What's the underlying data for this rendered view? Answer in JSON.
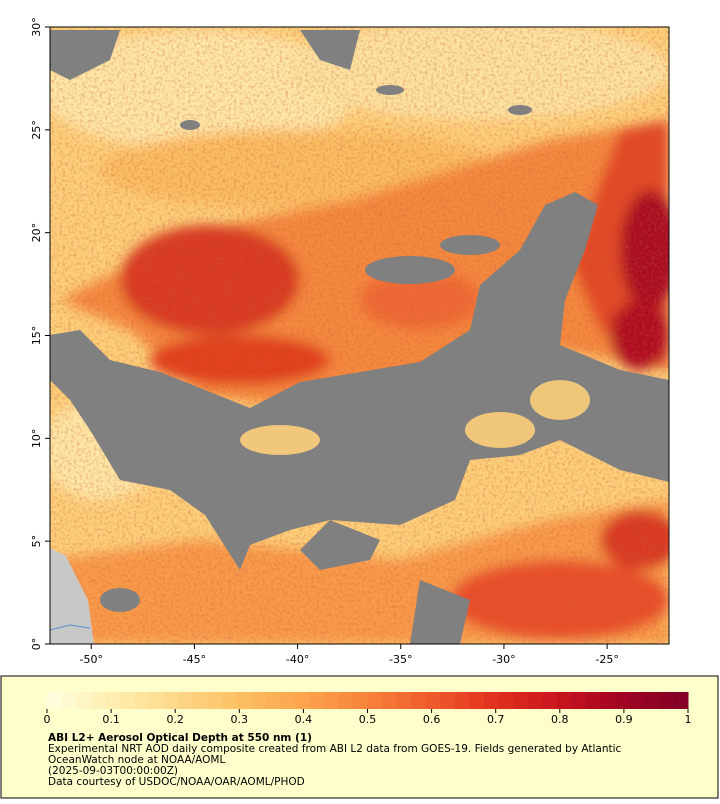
{
  "map": {
    "xlim": [
      -52,
      -22
    ],
    "ylim": [
      0,
      30
    ],
    "xticks": [
      {
        "value": -50,
        "label": "-50°"
      },
      {
        "value": -45,
        "label": "-45°"
      },
      {
        "value": -40,
        "label": "-40°"
      },
      {
        "value": -35,
        "label": "-35°"
      },
      {
        "value": -30,
        "label": "-30°"
      },
      {
        "value": -25,
        "label": "-25°"
      }
    ],
    "yticks": [
      {
        "value": 0,
        "label": "0°"
      },
      {
        "value": 5,
        "label": "5°"
      },
      {
        "value": 10,
        "label": "10°"
      },
      {
        "value": 15,
        "label": "15°"
      },
      {
        "value": 20,
        "label": "20°"
      },
      {
        "value": 25,
        "label": "25°"
      },
      {
        "value": 30,
        "label": "30°"
      }
    ]
  },
  "colorbar": {
    "range": [
      0,
      1
    ],
    "ticks": [
      0,
      0.1,
      0.2,
      0.3,
      0.4,
      0.5,
      0.6,
      0.7,
      0.8,
      0.9,
      1
    ],
    "colormap": [
      "#ffffe0",
      "#ffeeb0",
      "#fed88a",
      "#fdc064",
      "#fca44c",
      "#f8833c",
      "#f05a2c",
      "#e0301e",
      "#c8141e",
      "#a00422",
      "#800026"
    ]
  },
  "footer": {
    "title": "ABI L2+ Aerosol Optical Depth at 550 nm (1)",
    "lines": [
      "Experimental NRT AOD daily composite created from ABI L2 data from GOES-19. Fields generated by Atlantic OceanWatch node at NOAA/AOML",
      "(2025-09-03T00:00:00Z)",
      "Data courtesy of USDOC/NOAA/OAR/AOML/PHOD"
    ]
  }
}
